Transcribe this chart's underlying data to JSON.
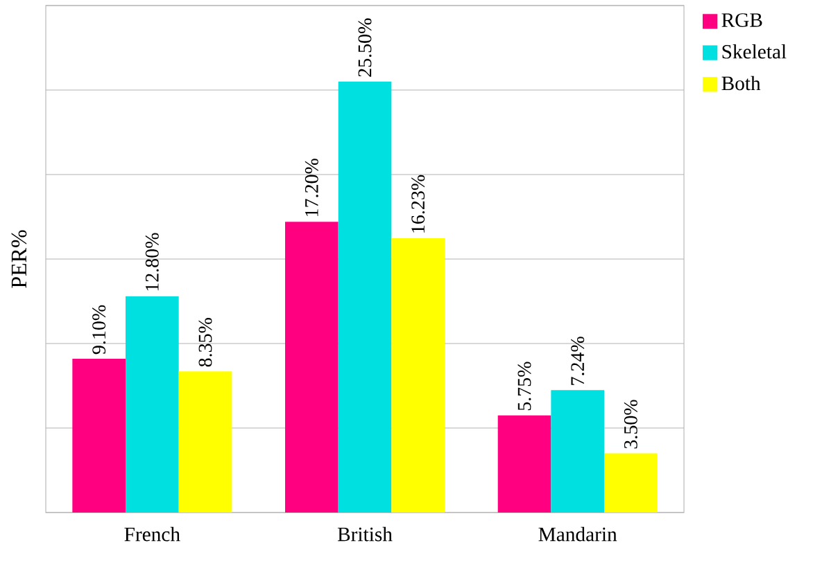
{
  "chart_data": {
    "type": "bar",
    "ylabel": "PER%",
    "categories": [
      "French",
      "British",
      "Mandarin"
    ],
    "series": [
      {
        "name": "RGB",
        "color": "#ff0080",
        "values": [
          9.1,
          17.2,
          5.75
        ],
        "value_labels": [
          "9.10%",
          "17.20%",
          "5.75%"
        ]
      },
      {
        "name": "Skeletal",
        "color": "#00e0e0",
        "values": [
          12.8,
          25.5,
          7.24
        ],
        "value_labels": [
          "12.80%",
          "25.50%",
          "7.24%"
        ]
      },
      {
        "name": "Both",
        "color": "#ffff00",
        "values": [
          8.35,
          16.23,
          3.5
        ],
        "value_labels": [
          "8.35%",
          "16.23%",
          "3.50%"
        ]
      }
    ],
    "ylim": [
      0,
      30
    ],
    "yticks": [
      {
        "value": 0,
        "label": null
      },
      {
        "value": 5,
        "label": null
      },
      {
        "value": 10,
        "label": null
      },
      {
        "value": 15,
        "label": null
      },
      {
        "value": 20,
        "label": null
      },
      {
        "value": 25,
        "label": null
      },
      {
        "value": 30,
        "label": null
      }
    ],
    "grid": "y",
    "legend": "right",
    "tick_labels": "x"
  }
}
